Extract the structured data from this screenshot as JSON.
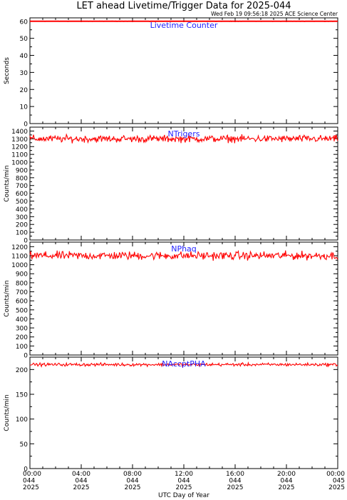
{
  "header": {
    "title": "LET ahead Livetime/Trigger Data for 2025-044",
    "timestamp": "Wed Feb 19 09:56:18 2025 ACE Science Center"
  },
  "colors": {
    "series": "#ff0000",
    "panel_label": "#2222ff",
    "axis": "#000000",
    "background": "#ffffff"
  },
  "x_axis": {
    "label": "UTC Day of Year",
    "ticks": [
      {
        "time": "00:00",
        "day": "044",
        "year": "2025"
      },
      {
        "time": "04:00",
        "day": "044",
        "year": "2025"
      },
      {
        "time": "08:00",
        "day": "044",
        "year": "2025"
      },
      {
        "time": "12:00",
        "day": "044",
        "year": "2025"
      },
      {
        "time": "16:00",
        "day": "044",
        "year": "2025"
      },
      {
        "time": "20:00",
        "day": "044",
        "year": "2025"
      },
      {
        "time": "00:00",
        "day": "045",
        "year": "2025"
      }
    ]
  },
  "chart_data": [
    {
      "type": "line",
      "title": "Livetime Counter",
      "ylabel": "Seconds",
      "ylim": [
        0,
        62
      ],
      "yticks": [
        0,
        10,
        20,
        30,
        40,
        50,
        60
      ],
      "xlim_hours": [
        0,
        24
      ],
      "series": [
        {
          "level": 60,
          "noise": 0.05
        }
      ]
    },
    {
      "type": "line",
      "title": "NTrigers",
      "ylabel": "Counts/min",
      "ylim": [
        0,
        1450
      ],
      "yticks": [
        0,
        100,
        200,
        300,
        400,
        500,
        600,
        700,
        800,
        900,
        1000,
        1100,
        1200,
        1300,
        1400
      ],
      "xlim_hours": [
        0,
        24
      ],
      "series": [
        {
          "level": 1300,
          "noise": 45
        }
      ]
    },
    {
      "type": "line",
      "title": "NPhaq",
      "ylabel": "Counts/min",
      "ylim": [
        0,
        1250
      ],
      "yticks": [
        0,
        100,
        200,
        300,
        400,
        500,
        600,
        700,
        800,
        900,
        1000,
        1100,
        1200
      ],
      "xlim_hours": [
        0,
        24
      ],
      "series": [
        {
          "level": 1100,
          "noise": 45
        }
      ]
    },
    {
      "type": "line",
      "title": "NAccptPHA",
      "ylabel": "Counts/min",
      "ylim": [
        0,
        225
      ],
      "yticks": [
        0,
        50,
        100,
        150,
        200
      ],
      "xlim_hours": [
        0,
        24
      ],
      "series": [
        {
          "level": 210,
          "noise": 3
        }
      ]
    }
  ]
}
